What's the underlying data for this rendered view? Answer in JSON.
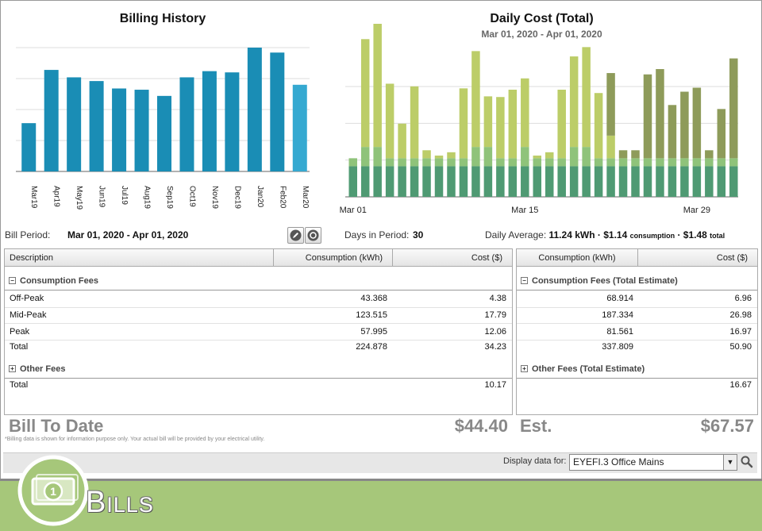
{
  "billing_history": {
    "title": "Billing History"
  },
  "daily_cost": {
    "title": "Daily Cost (Total)",
    "subtitle": "Mar 01, 2020 - Apr 01, 2020"
  },
  "chart_data": [
    {
      "type": "bar",
      "title": "Billing History",
      "categories": [
        "Mar19",
        "Apr19",
        "May19",
        "Jun19",
        "Jul19",
        "Aug19",
        "Sep19",
        "Oct19",
        "Nov19",
        "Dec19",
        "Jan20",
        "Feb20",
        "Mar20"
      ],
      "values": [
        39,
        82,
        76,
        73,
        67,
        66,
        61,
        76,
        81,
        80,
        100,
        96,
        70
      ],
      "ylim": [
        0,
        100
      ],
      "grid": true,
      "colors": {
        "bar": "#1a8db5",
        "current": "#35a9d1"
      }
    },
    {
      "type": "bar",
      "title": "Daily Cost (Total)",
      "subtitle": "Mar 01, 2020 - Apr 01, 2020",
      "x_ticks": [
        "Mar 01",
        "Mar 15",
        "Mar 29"
      ],
      "ylim": [
        0,
        2.6
      ],
      "grid": true,
      "stacked": true,
      "series": [
        {
          "name": "",
          "values": [
            0.46,
            0.46,
            0.46,
            0.46,
            0.46,
            0.46,
            0.46,
            0.46,
            0.46,
            0.46,
            0.46,
            0.46,
            0.46,
            0.46,
            0.46,
            0.46,
            0.46,
            0.46,
            0.46,
            0.46,
            0.46,
            0.46,
            0.46,
            0.46,
            0.46,
            0.46,
            0.46,
            0.46,
            0.46,
            0.46,
            0.46,
            0.46
          ]
        },
        {
          "name": "",
          "values": [
            0.12,
            0.29,
            0.29,
            0.12,
            0.12,
            0.12,
            0.12,
            0.12,
            0.12,
            0.12,
            0.29,
            0.29,
            0.12,
            0.12,
            0.29,
            0.12,
            0.12,
            0.12,
            0.29,
            0.29,
            0.12,
            0.12,
            0.12,
            0.12,
            0.12,
            0.12,
            0.12,
            0.12,
            0.12,
            0.12,
            0.12,
            0.12
          ]
        },
        {
          "name": "",
          "values": [
            0,
            1.62,
            1.85,
            1.12,
            0.52,
            1.08,
            0.12,
            0.04,
            0.09,
            1.05,
            1.44,
            0.76,
            0.92,
            1.03,
            1.03,
            0.04,
            0.09,
            1.03,
            1.36,
            1.5,
            0.98,
            0.34,
            0,
            0,
            0,
            0,
            0,
            0,
            0,
            0,
            0,
            0
          ]
        },
        {
          "name": "",
          "values": [
            0,
            0,
            0,
            0,
            0,
            0,
            0,
            0,
            0,
            0,
            0,
            0,
            0,
            0,
            0,
            0,
            0,
            0,
            0,
            0,
            0,
            0.94,
            0.12,
            0.12,
            1.26,
            1.34,
            0.8,
            1.0,
            1.06,
            0.12,
            0.74,
            1.5
          ]
        }
      ],
      "colors": {
        "base": "#4f9a73",
        "mid": "#8fc37a",
        "light": "#bccd68",
        "olive": "#8e9b5a"
      }
    }
  ],
  "info": {
    "bill_period_label": "Bill Period:",
    "bill_period_value": "Mar 01, 2020 - Apr 01, 2020",
    "days_label": "Days in Period:",
    "days_value": "30",
    "daily_avg_label": "Daily Average:",
    "daily_avg_kwh": "11.24 kWh",
    "dot1": "·",
    "daily_avg_cons": "$1.14",
    "cons_word": "consumption",
    "dot2": "·",
    "daily_avg_total": "$1.48",
    "total_word": "total"
  },
  "left_table": {
    "headers": [
      "Description",
      "Consumption (kWh)",
      "Cost ($)"
    ],
    "section1": "Consumption Fees",
    "rows": [
      {
        "desc": "Off-Peak",
        "kwh": "43.368",
        "cost": "4.38"
      },
      {
        "desc": "Mid-Peak",
        "kwh": "123.515",
        "cost": "17.79"
      },
      {
        "desc": "Peak",
        "kwh": "57.995",
        "cost": "12.06"
      },
      {
        "desc": "Total",
        "kwh": "224.878",
        "cost": "34.23"
      }
    ],
    "section2": "Other Fees",
    "other_total_label": "Total",
    "other_total_cost": "10.17"
  },
  "right_table": {
    "headers": [
      "Consumption (kWh)",
      "Cost ($)"
    ],
    "section1": "Consumption Fees (Total Estimate)",
    "rows": [
      {
        "kwh": "68.914",
        "cost": "6.96"
      },
      {
        "kwh": "187.334",
        "cost": "26.98"
      },
      {
        "kwh": "81.561",
        "cost": "16.97"
      },
      {
        "kwh": "337.809",
        "cost": "50.90"
      }
    ],
    "section2": "Other Fees (Total Estimate)",
    "other_total_cost": "16.67"
  },
  "summary": {
    "bill_to_date_label": "Bill To Date",
    "bill_to_date_value": "$44.40",
    "est_label": "Est.",
    "est_value": "$67.57",
    "note": "*Billing data is shown for information purpose only. Your actual bill will be provided by your electrical utility."
  },
  "footer": {
    "display_label": "Display data for:",
    "display_value": "EYEFI.3 Office Mains"
  },
  "banner": {
    "title": "Bills"
  },
  "icons": {
    "edit": "pencil-icon",
    "info": "help-icon",
    "search": "magnifier-icon",
    "banner": "money-icon"
  }
}
